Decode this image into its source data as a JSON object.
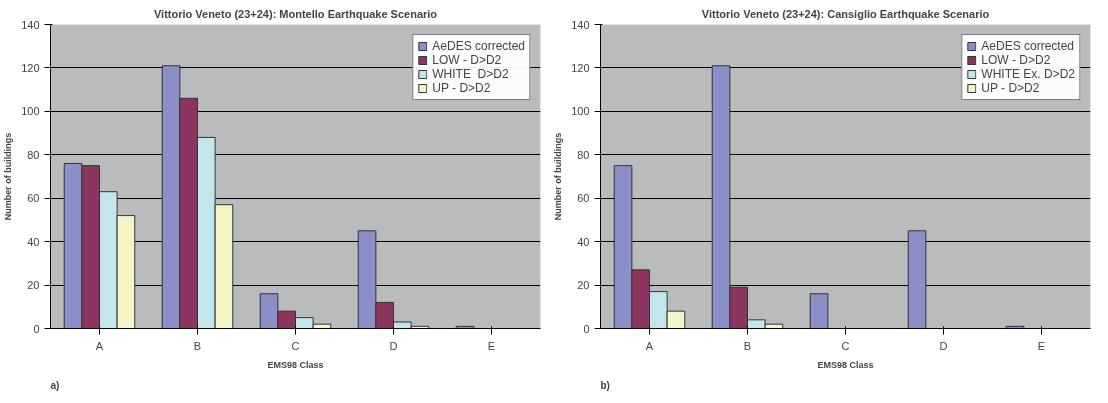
{
  "chart_data": [
    {
      "type": "bar",
      "title": "Vittorio Veneto (23+24): Montello Earthquake Scenario",
      "xlabel": "EMS98 Class",
      "ylabel": "Number of buildings",
      "categories": [
        "A",
        "B",
        "C",
        "D",
        "E"
      ],
      "series": [
        {
          "name": "AeDES corrected",
          "color": "#8b8fc8",
          "values": [
            76,
            121,
            16,
            45,
            1
          ]
        },
        {
          "name": "LOW - D>D2",
          "color": "#8b3560",
          "values": [
            75,
            106,
            8,
            12,
            0
          ]
        },
        {
          "name": "WHITE  D>D2",
          "color": "#c2e6ec",
          "values": [
            63,
            88,
            5,
            3,
            0
          ]
        },
        {
          "name": "UP - D>D2",
          "color": "#f4f4c6",
          "values": [
            52,
            57,
            2,
            1,
            0
          ]
        }
      ],
      "ylim": [
        0,
        140
      ],
      "yticks": [
        0,
        20,
        40,
        60,
        80,
        100,
        120,
        140
      ],
      "grid": "y",
      "legend": "top right",
      "annotations": [
        "a)"
      ]
    },
    {
      "type": "bar",
      "title": "Vittorio Veneto (23+24): Cansiglio Earthquake Scenario",
      "xlabel": "EMS98 Class",
      "ylabel": "Number of buildings",
      "categories": [
        "A",
        "B",
        "C",
        "D",
        "E"
      ],
      "series": [
        {
          "name": "AeDES corrected",
          "color": "#8b8fc8",
          "values": [
            75,
            121,
            16,
            45,
            1
          ]
        },
        {
          "name": "LOW - D>D2",
          "color": "#8b3560",
          "values": [
            27,
            19,
            0,
            0,
            0
          ]
        },
        {
          "name": "WHITE Ex. D>D2",
          "color": "#c2e6ec",
          "values": [
            17,
            4,
            0,
            0,
            0
          ]
        },
        {
          "name": "UP - D>D2",
          "color": "#f4f4c6",
          "values": [
            8,
            2,
            0,
            0,
            0
          ]
        }
      ],
      "ylim": [
        0,
        140
      ],
      "yticks": [
        0,
        20,
        40,
        60,
        80,
        100,
        120,
        140
      ],
      "grid": "y",
      "legend": "top right",
      "annotations": [
        "b)"
      ]
    }
  ]
}
